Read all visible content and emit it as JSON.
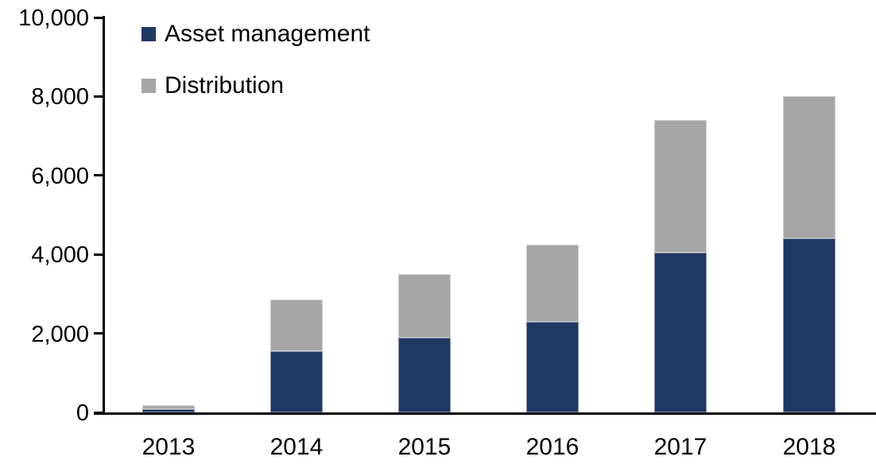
{
  "chart_data": {
    "type": "bar",
    "stacked": true,
    "title": "",
    "xlabel": "",
    "ylabel": "",
    "categories": [
      "2013",
      "2014",
      "2015",
      "2016",
      "2017",
      "2018"
    ],
    "series": [
      {
        "name": "Asset management",
        "color": "#1F3864",
        "values": [
          80,
          1550,
          1900,
          2300,
          4050,
          4400
        ]
      },
      {
        "name": "Distribution",
        "color": "#A6A6A6",
        "values": [
          100,
          1300,
          1600,
          1950,
          3350,
          3600
        ]
      }
    ],
    "totals": [
      180,
      2850,
      3500,
      4250,
      7400,
      8000
    ],
    "ylim": [
      0,
      10000
    ],
    "y_ticks": [
      {
        "value": 0,
        "label": "0"
      },
      {
        "value": 2000,
        "label": "2,000"
      },
      {
        "value": 4000,
        "label": "4,000"
      },
      {
        "value": 6000,
        "label": "6,000"
      },
      {
        "value": 8000,
        "label": "8,000"
      },
      {
        "value": 10000,
        "label": "10,000"
      }
    ],
    "legend_position": "top-left",
    "grid": false,
    "axis_color": "#000000",
    "text_color": "#000000",
    "background": "#FFFFFF"
  }
}
